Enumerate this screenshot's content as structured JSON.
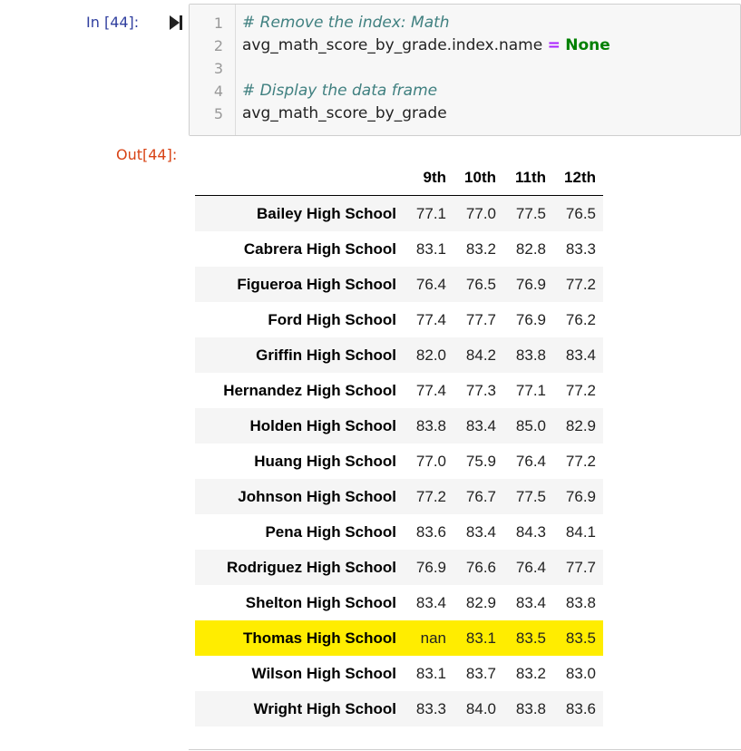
{
  "input_cell": {
    "prompt": "In [44]:",
    "lines": [
      {
        "n": "1",
        "comment": "# Remove the index: Math"
      },
      {
        "n": "2",
        "pre": "avg_math_score_by_grade.index.name ",
        "op": "=",
        "kw": "None"
      },
      {
        "n": "3"
      },
      {
        "n": "4",
        "comment": "# Display the data frame"
      },
      {
        "n": "5",
        "text": "avg_math_score_by_grade"
      }
    ]
  },
  "output_cell": {
    "prompt": "Out[44]:",
    "columns": [
      "9th",
      "10th",
      "11th",
      "12th"
    ],
    "rows": [
      {
        "school": "Bailey High School",
        "values": [
          "77.1",
          "77.0",
          "77.5",
          "76.5"
        ]
      },
      {
        "school": "Cabrera High School",
        "values": [
          "83.1",
          "83.2",
          "82.8",
          "83.3"
        ]
      },
      {
        "school": "Figueroa High School",
        "values": [
          "76.4",
          "76.5",
          "76.9",
          "77.2"
        ]
      },
      {
        "school": "Ford High School",
        "values": [
          "77.4",
          "77.7",
          "76.9",
          "76.2"
        ]
      },
      {
        "school": "Griffin High School",
        "values": [
          "82.0",
          "84.2",
          "83.8",
          "83.4"
        ]
      },
      {
        "school": "Hernandez High School",
        "values": [
          "77.4",
          "77.3",
          "77.1",
          "77.2"
        ]
      },
      {
        "school": "Holden High School",
        "values": [
          "83.8",
          "83.4",
          "85.0",
          "82.9"
        ]
      },
      {
        "school": "Huang High School",
        "values": [
          "77.0",
          "75.9",
          "76.4",
          "77.2"
        ]
      },
      {
        "school": "Johnson High School",
        "values": [
          "77.2",
          "76.7",
          "77.5",
          "76.9"
        ]
      },
      {
        "school": "Pena High School",
        "values": [
          "83.6",
          "83.4",
          "84.3",
          "84.1"
        ]
      },
      {
        "school": "Rodriguez High School",
        "values": [
          "76.9",
          "76.6",
          "76.4",
          "77.7"
        ]
      },
      {
        "school": "Shelton High School",
        "values": [
          "83.4",
          "82.9",
          "83.4",
          "83.8"
        ]
      },
      {
        "school": "Thomas High School",
        "values": [
          "nan",
          "83.1",
          "83.5",
          "83.5"
        ],
        "highlighted": true
      },
      {
        "school": "Wilson High School",
        "values": [
          "83.1",
          "83.7",
          "83.2",
          "83.0"
        ]
      },
      {
        "school": "Wright High School",
        "values": [
          "83.3",
          "84.0",
          "83.8",
          "83.6"
        ]
      }
    ],
    "highlight_color": "#ffed00"
  },
  "colors": {
    "in_prompt": "#303f9f",
    "out_prompt": "#d84315",
    "comment": "#408080",
    "operator": "#aa22ff",
    "keyword": "#008000"
  }
}
